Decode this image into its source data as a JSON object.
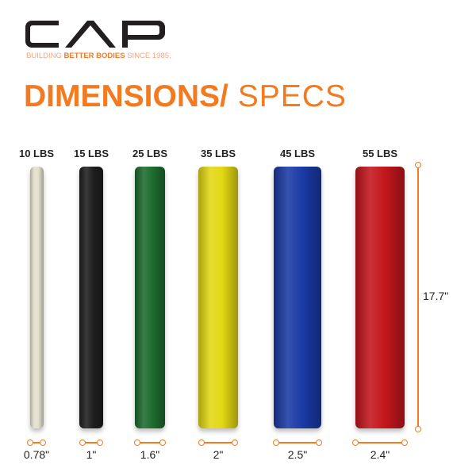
{
  "brand": {
    "logo_text": "CAP",
    "tagline_pre": "BUILDING ",
    "tagline_bold": "BETTER BODIES",
    "tagline_post": " SINCE 1985."
  },
  "title": {
    "bold": "DIMENSIONS/",
    "light": " SPECS"
  },
  "accent_color": "#f47a20",
  "height_label": "17.7\"",
  "plates": [
    {
      "weight": "10 LBS",
      "thickness": "0.78\"",
      "color": "#e4e0cf"
    },
    {
      "weight": "15 LBS",
      "thickness": "1\"",
      "color": "#1e1e1e"
    },
    {
      "weight": "25 LBS",
      "thickness": "1.6\"",
      "color": "#1d6b2e"
    },
    {
      "weight": "35 LBS",
      "thickness": "2\"",
      "color": "#e3d813"
    },
    {
      "weight": "45 LBS",
      "thickness": "2.5\"",
      "color": "#1a3aa5"
    },
    {
      "weight": "55 LBS",
      "thickness": "2.4\"",
      "color": "#c4161c"
    }
  ]
}
